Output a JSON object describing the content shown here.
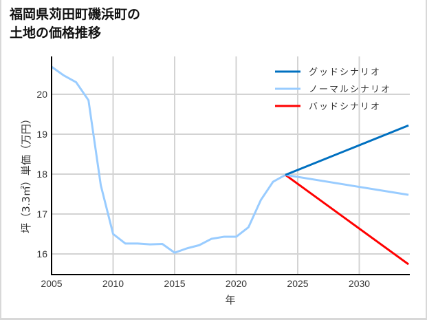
{
  "title": "福岡県苅田町磯浜町の\n土地の価格推移",
  "chart_data": {
    "type": "line",
    "title": "福岡県苅田町磯浜町の土地の価格推移",
    "xlabel": "年",
    "ylabel": "坪（3.3㎡）単価（万円）",
    "xlim": [
      2005,
      2034
    ],
    "ylim": [
      15.5,
      21.0
    ],
    "x_ticks": [
      2005,
      2010,
      2015,
      2020,
      2025,
      2030
    ],
    "y_ticks": [
      16,
      17,
      18,
      19,
      20
    ],
    "grid": true,
    "legend_position": "upper right",
    "series": [
      {
        "name": "ノーマルシナリオ (historical)",
        "color": "#99ccff",
        "x": [
          2005,
          2006,
          2007,
          2008,
          2009,
          2010,
          2011,
          2012,
          2013,
          2014,
          2015,
          2016,
          2017,
          2018,
          2019,
          2020,
          2021,
          2022,
          2023,
          2024
        ],
        "values": [
          20.69,
          20.47,
          20.3,
          19.85,
          17.72,
          16.5,
          16.26,
          16.26,
          16.24,
          16.25,
          16.03,
          16.14,
          16.22,
          16.38,
          16.43,
          16.43,
          16.67,
          17.35,
          17.81,
          17.98
        ]
      },
      {
        "name": "グッドシナリオ",
        "color": "#0070c0",
        "x": [
          2024,
          2034
        ],
        "values": [
          17.98,
          19.22
        ]
      },
      {
        "name": "ノーマルシナリオ",
        "color": "#99ccff",
        "x": [
          2024,
          2034
        ],
        "values": [
          17.98,
          17.48
        ]
      },
      {
        "name": "バッドシナリオ",
        "color": "#ff0000",
        "x": [
          2024,
          2034
        ],
        "values": [
          17.98,
          15.74
        ]
      }
    ]
  },
  "legend": [
    {
      "label": "グッドシナリオ",
      "color": "#0070c0"
    },
    {
      "label": "ノーマルシナリオ",
      "color": "#99ccff"
    },
    {
      "label": "バッドシナリオ",
      "color": "#ff0000"
    }
  ]
}
